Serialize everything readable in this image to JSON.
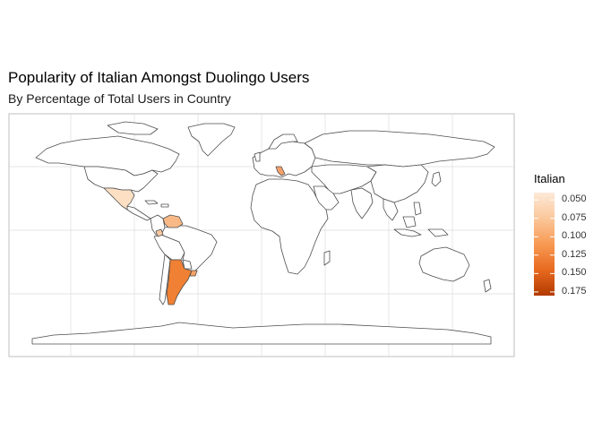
{
  "map": {
    "title": "Popularity of Italian Amongst Duolingo Users",
    "subtitle": "By Percentage of Total Users in Country",
    "colors": {
      "land_fill": "#ffffff",
      "border": "#4d4d4d",
      "grid": "#dddddd",
      "panel_border": "#b0b0b0",
      "scale_low": "#fde4cc",
      "scale_high": "#c43c00"
    },
    "highlighted_regions": [
      {
        "name": "Mexico",
        "level": 0.06
      },
      {
        "name": "Italy",
        "level": 0.11
      },
      {
        "name": "Venezuela",
        "level": 0.09
      },
      {
        "name": "Ecuador",
        "level": 0.08
      },
      {
        "name": "Argentina",
        "level": 0.12
      },
      {
        "name": "Uruguay",
        "level": 0.11
      }
    ]
  },
  "legend": {
    "title": "Italian",
    "min": 0.04,
    "max": 0.18,
    "ticks": [
      "0.050",
      "0.075",
      "0.100",
      "0.125",
      "0.150",
      "0.175"
    ],
    "tick_values": [
      0.05,
      0.075,
      0.1,
      0.125,
      0.15,
      0.175
    ]
  }
}
